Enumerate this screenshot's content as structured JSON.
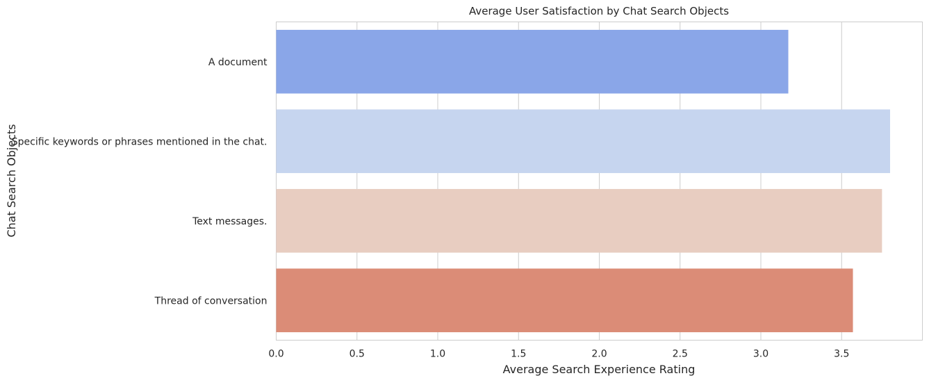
{
  "chart_data": {
    "type": "bar",
    "orientation": "horizontal",
    "title": "Average User Satisfaction by Chat Search Objects",
    "xlabel": "Average Search Experience Rating",
    "ylabel": "Chat Search Objects",
    "categories": [
      "A document",
      "Specific keywords or phrases mentioned in the chat.",
      "Text messages.",
      "Thread of conversation"
    ],
    "values": [
      3.17,
      3.8,
      3.75,
      3.57
    ],
    "colors": [
      "#8aa6e8",
      "#c6d5ef",
      "#e8cdc1",
      "#db8c77"
    ],
    "xlim": [
      0,
      4.0
    ],
    "xticks": [
      0.0,
      0.5,
      1.0,
      1.5,
      2.0,
      2.5,
      3.0,
      3.5
    ],
    "xtick_labels": [
      "0.0",
      "0.5",
      "1.0",
      "1.5",
      "2.0",
      "2.5",
      "3.0",
      "3.5"
    ],
    "grid": true,
    "legend": "none"
  }
}
